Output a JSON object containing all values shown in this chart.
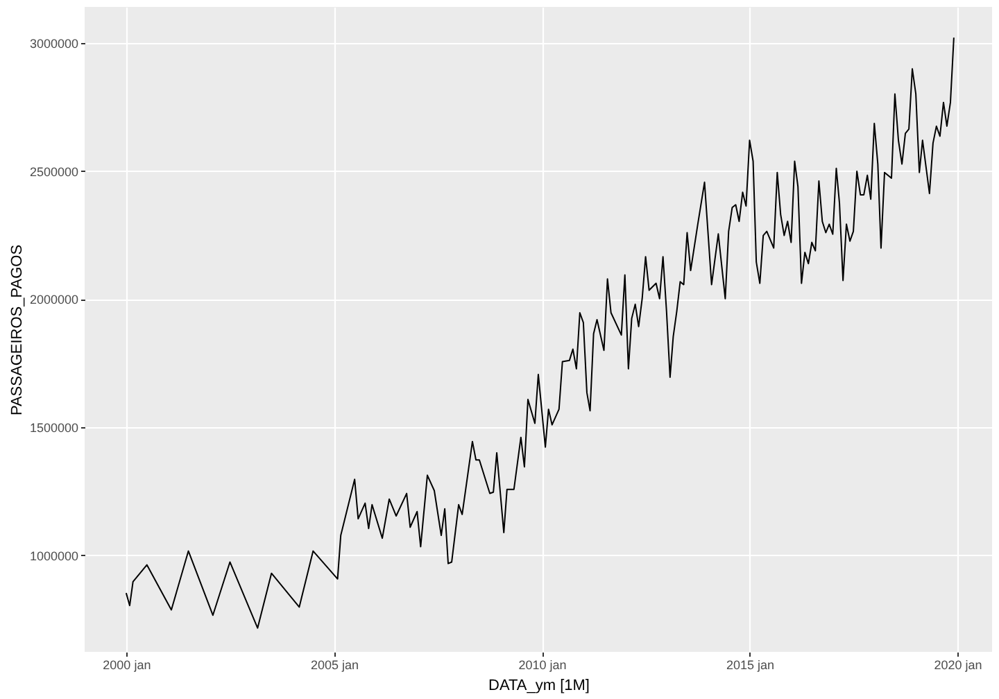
{
  "chart_data": {
    "type": "line",
    "xlabel": "DATA_ym [1M]",
    "ylabel": "PASSAGEIROS_PAGOS",
    "xlim": [
      "1999-01",
      "2020-11"
    ],
    "ylim": [
      622000,
      3142000
    ],
    "xticks": [
      {
        "value": "2000-01",
        "label": "2000 jan"
      },
      {
        "value": "2005-01",
        "label": "2005 jan"
      },
      {
        "value": "2010-01",
        "label": "2010 jan"
      },
      {
        "value": "2015-01",
        "label": "2015 jan"
      },
      {
        "value": "2020-01",
        "label": "2020 jan"
      }
    ],
    "yticks": [
      1000000,
      1500000,
      2000000,
      2500000,
      3000000
    ],
    "grid": true,
    "marker": "none",
    "line_style": "solid",
    "series": [
      {
        "color": "#000000",
        "x": [
          "2000-01",
          "2000-02",
          "2000-03",
          "2000-07",
          "2001-02",
          "2001-07",
          "2002-02",
          "2002-07",
          "2003-03",
          "2003-07",
          "2004-03",
          "2004-07",
          "2005-02",
          "2005-03",
          "2005-07",
          "2005-08",
          "2005-10",
          "2005-11",
          "2005-12",
          "2006-03",
          "2006-05",
          "2006-07",
          "2006-10",
          "2006-11",
          "2007-01",
          "2007-02",
          "2007-04",
          "2007-06",
          "2007-08",
          "2007-09",
          "2007-10",
          "2007-11",
          "2008-01",
          "2008-02",
          "2008-05",
          "2008-06",
          "2008-07",
          "2008-10",
          "2008-11",
          "2008-12",
          "2009-02",
          "2009-03",
          "2009-05",
          "2009-07",
          "2009-08",
          "2009-09",
          "2009-11",
          "2009-12",
          "2010-02",
          "2010-03",
          "2010-04",
          "2010-06",
          "2010-07",
          "2010-09",
          "2010-10",
          "2010-11",
          "2010-12",
          "2011-01",
          "2011-02",
          "2011-03",
          "2011-04",
          "2011-05",
          "2011-07",
          "2011-08",
          "2011-09",
          "2011-12",
          "2012-01",
          "2012-02",
          "2012-03",
          "2012-04",
          "2012-05",
          "2012-06",
          "2012-07",
          "2012-08",
          "2012-10",
          "2012-11",
          "2012-12",
          "2013-01",
          "2013-02",
          "2013-03",
          "2013-04",
          "2013-05",
          "2013-06",
          "2013-07",
          "2013-08",
          "2013-10",
          "2013-12",
          "2014-02",
          "2014-04",
          "2014-06",
          "2014-07",
          "2014-08",
          "2014-09",
          "2014-10",
          "2014-11",
          "2014-12",
          "2015-01",
          "2015-02",
          "2015-03",
          "2015-04",
          "2015-05",
          "2015-06",
          "2015-08",
          "2015-09",
          "2015-10",
          "2015-11",
          "2015-12",
          "2016-01",
          "2016-02",
          "2016-03",
          "2016-04",
          "2016-05",
          "2016-06",
          "2016-07",
          "2016-08",
          "2016-09",
          "2016-10",
          "2016-11",
          "2016-12",
          "2017-01",
          "2017-02",
          "2017-03",
          "2017-04",
          "2017-05",
          "2017-06",
          "2017-07",
          "2017-08",
          "2017-09",
          "2017-10",
          "2017-11",
          "2017-12",
          "2018-01",
          "2018-02",
          "2018-03",
          "2018-04",
          "2018-06",
          "2018-07",
          "2018-08",
          "2018-09",
          "2018-10",
          "2018-11",
          "2018-12",
          "2019-01",
          "2019-02",
          "2019-03",
          "2019-05",
          "2019-06",
          "2019-07",
          "2019-08",
          "2019-09",
          "2019-10",
          "2019-11",
          "2019-12"
        ],
        "values": [
          852000,
          803000,
          896000,
          962000,
          786000,
          1016000,
          765000,
          973000,
          715000,
          929000,
          797000,
          1016000,
          907000,
          1077000,
          1296000,
          1142000,
          1203000,
          1104000,
          1197000,
          1066000,
          1219000,
          1153000,
          1241000,
          1109000,
          1170000,
          1033000,
          1312000,
          1252000,
          1077000,
          1181000,
          967000,
          973000,
          1197000,
          1159000,
          1444000,
          1372000,
          1372000,
          1241000,
          1246000,
          1400000,
          1088000,
          1257000,
          1257000,
          1460000,
          1345000,
          1608000,
          1515000,
          1706000,
          1422000,
          1570000,
          1509000,
          1570000,
          1756000,
          1761000,
          1805000,
          1728000,
          1947000,
          1909000,
          1635000,
          1564000,
          1865000,
          1920000,
          1800000,
          2079000,
          1947000,
          1860000,
          2095000,
          1728000,
          1925000,
          1980000,
          1893000,
          2002000,
          2166000,
          2035000,
          2062000,
          2002000,
          2166000,
          1953000,
          1695000,
          1854000,
          1953000,
          2068000,
          2057000,
          2260000,
          2112000,
          2288000,
          2457000,
          2057000,
          2255000,
          2002000,
          2265000,
          2358000,
          2369000,
          2304000,
          2418000,
          2364000,
          2621000,
          2539000,
          2145000,
          2062000,
          2249000,
          2265000,
          2200000,
          2495000,
          2331000,
          2249000,
          2304000,
          2222000,
          2539000,
          2440000,
          2062000,
          2183000,
          2139000,
          2222000,
          2189000,
          2462000,
          2304000,
          2260000,
          2293000,
          2254000,
          2511000,
          2375000,
          2073000,
          2293000,
          2227000,
          2265000,
          2500000,
          2408000,
          2408000,
          2484000,
          2391000,
          2687000,
          2528000,
          2200000,
          2495000,
          2473000,
          2802000,
          2621000,
          2528000,
          2648000,
          2665000,
          2900000,
          2802000,
          2495000,
          2621000,
          2413000,
          2610000,
          2676000,
          2637000,
          2769000,
          2676000,
          2769000,
          3022000
        ]
      }
    ]
  }
}
